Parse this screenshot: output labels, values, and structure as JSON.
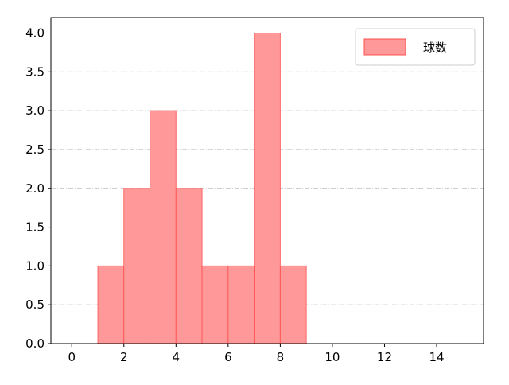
{
  "chart_data": {
    "type": "bar",
    "histogram": true,
    "bins": [
      [
        1,
        2
      ],
      [
        2,
        3
      ],
      [
        3,
        4
      ],
      [
        4,
        5
      ],
      [
        5,
        6
      ],
      [
        6,
        7
      ],
      [
        7,
        8
      ],
      [
        8,
        9
      ]
    ],
    "series": [
      {
        "name": "球数",
        "values": [
          1,
          2,
          3,
          2,
          1,
          1,
          4,
          1
        ]
      }
    ],
    "xlim": [
      -0.8,
      15.8
    ],
    "ylim": [
      0,
      4.2
    ],
    "xticks": [
      0,
      2,
      4,
      6,
      8,
      10,
      12,
      14
    ],
    "yticks": [
      "0.0",
      "0.5",
      "1.0",
      "1.5",
      "2.0",
      "2.5",
      "3.0",
      "3.5",
      "4.0"
    ],
    "grid": "horizontal dash-dot",
    "legend": "top-right",
    "colors": {
      "bar_fill": "#ff9999",
      "bar_edge": "#ff4d4d",
      "grid": "#b0b0b0"
    }
  }
}
